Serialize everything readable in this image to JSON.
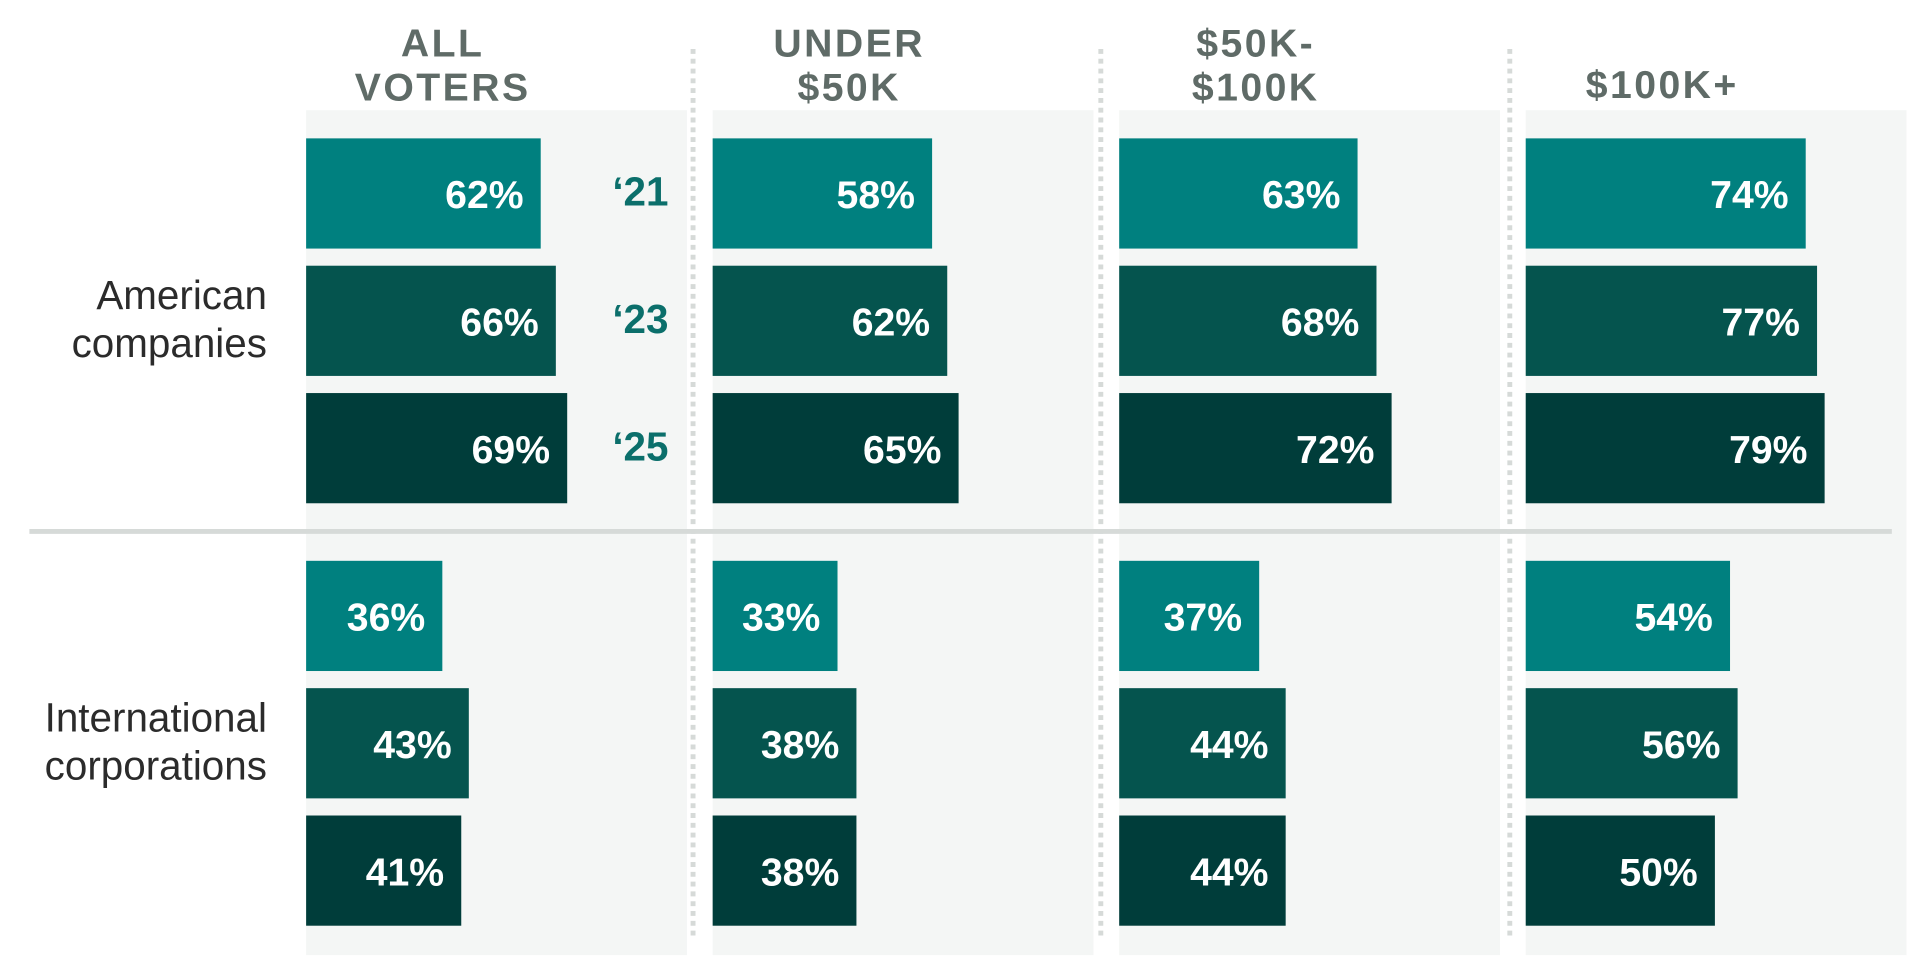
{
  "chart_data": {
    "type": "bar",
    "orientation": "horizontal",
    "panels": [
      {
        "header": [
          "ALL",
          "VOTERS"
        ],
        "rows": [
          [
            62,
            66,
            69
          ],
          [
            36,
            43,
            41
          ]
        ]
      },
      {
        "header": [
          "UNDER",
          "$50K"
        ],
        "rows": [
          [
            58,
            62,
            65
          ],
          [
            33,
            38,
            38
          ]
        ]
      },
      {
        "header": [
          "$50K-",
          "$100K"
        ],
        "rows": [
          [
            63,
            68,
            72
          ],
          [
            37,
            44,
            44
          ]
        ]
      },
      {
        "header": [
          "$100K+"
        ],
        "rows": [
          [
            74,
            77,
            79
          ],
          [
            54,
            56,
            50
          ]
        ]
      }
    ],
    "categories": [
      {
        "lines": [
          "American",
          "companies"
        ]
      },
      {
        "lines": [
          "International",
          "corporations"
        ]
      }
    ],
    "series": [
      {
        "name": "‘21",
        "color": "#00807F"
      },
      {
        "name": "‘23",
        "color": "#05544E"
      },
      {
        "name": "‘25",
        "color": "#003D3A"
      }
    ],
    "value_suffix": "%",
    "xlim": [
      0,
      100
    ],
    "grid": false,
    "legend_placement": "beside first panel bars",
    "colors": {
      "panel_background": "#F4F6F5",
      "header_text": "#5F6B67",
      "category_text": "#2B2B2B",
      "legend_text": "#0B6F6B",
      "label_text": "#FFFFFF",
      "divider": "#D6DAD8"
    }
  }
}
